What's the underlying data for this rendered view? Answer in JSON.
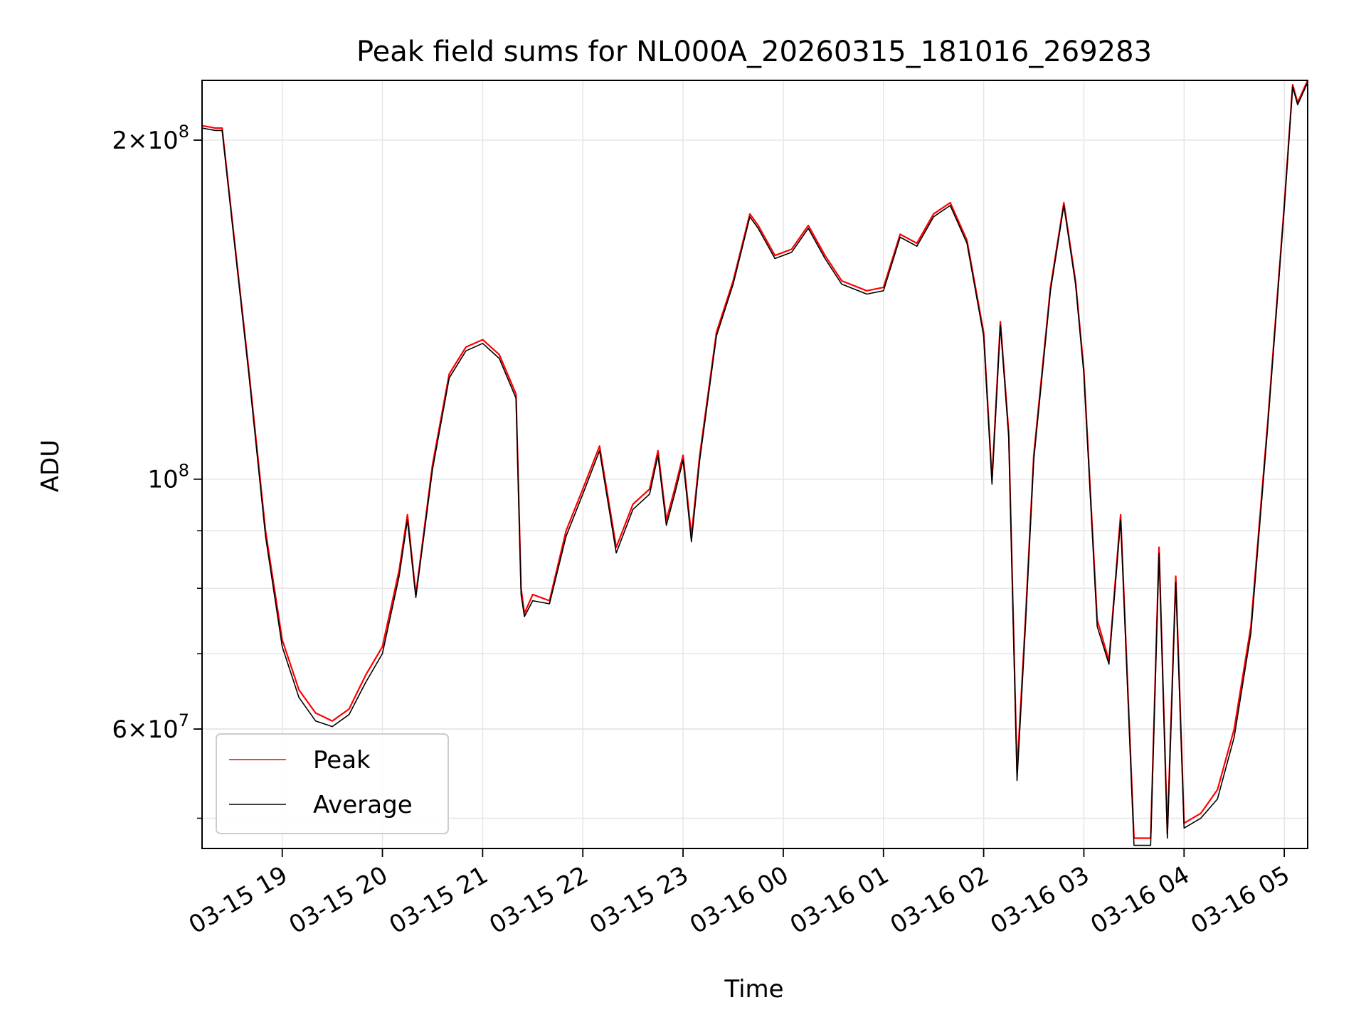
{
  "chart_data": {
    "type": "line",
    "title": "Peak field sums for NL000A_20260315_181016_269283",
    "xlabel": "Time",
    "ylabel": "ADU",
    "yscale": "log",
    "grid": true,
    "legend_position": "lower-left",
    "x_range": [
      "2026-03-15 18:12",
      "2026-03-16 05:14"
    ],
    "y_range": [
      47000000,
      226000000
    ],
    "x_ticks": [
      "03-15 19",
      "03-15 20",
      "03-15 21",
      "03-15 22",
      "03-15 23",
      "03-16 00",
      "03-16 01",
      "03-16 02",
      "03-16 03",
      "03-16 04",
      "03-16 05"
    ],
    "y_ticks": [
      {
        "value": 60000000,
        "label_mantissa": "6",
        "label_exponent": "7"
      },
      {
        "value": 100000000,
        "label_mantissa": "",
        "label_exponent": "8"
      },
      {
        "value": 200000000,
        "label_mantissa": "2",
        "label_exponent": "8"
      }
    ],
    "series": [
      {
        "name": "Peak",
        "color": "#ff0000",
        "points": [
          [
            "2026-03-15 18:12",
            206000000
          ],
          [
            "2026-03-15 18:20",
            205000000
          ],
          [
            "2026-03-15 18:24",
            205000000
          ],
          [
            "2026-03-15 18:30",
            170000000
          ],
          [
            "2026-03-15 18:40",
            125000000
          ],
          [
            "2026-03-15 18:50",
            90000000
          ],
          [
            "2026-03-15 19:00",
            72000000
          ],
          [
            "2026-03-15 19:10",
            65000000
          ],
          [
            "2026-03-15 19:20",
            62000000
          ],
          [
            "2026-03-15 19:30",
            61000000
          ],
          [
            "2026-03-15 19:40",
            62500000
          ],
          [
            "2026-03-15 19:50",
            67000000
          ],
          [
            "2026-03-15 20:00",
            71000000
          ],
          [
            "2026-03-15 20:10",
            83000000
          ],
          [
            "2026-03-15 20:15",
            93000000
          ],
          [
            "2026-03-15 20:20",
            79000000
          ],
          [
            "2026-03-15 20:30",
            103000000
          ],
          [
            "2026-03-15 20:40",
            124000000
          ],
          [
            "2026-03-15 20:50",
            131000000
          ],
          [
            "2026-03-15 21:00",
            133000000
          ],
          [
            "2026-03-15 21:10",
            129000000
          ],
          [
            "2026-03-15 21:20",
            119000000
          ],
          [
            "2026-03-15 21:23",
            80000000
          ],
          [
            "2026-03-15 21:25",
            76000000
          ],
          [
            "2026-03-15 21:30",
            79000000
          ],
          [
            "2026-03-15 21:40",
            78000000
          ],
          [
            "2026-03-15 21:50",
            90000000
          ],
          [
            "2026-03-15 22:00",
            98000000
          ],
          [
            "2026-03-15 22:10",
            107000000
          ],
          [
            "2026-03-15 22:20",
            87000000
          ],
          [
            "2026-03-15 22:30",
            95000000
          ],
          [
            "2026-03-15 22:40",
            98000000
          ],
          [
            "2026-03-15 22:45",
            106000000
          ],
          [
            "2026-03-15 22:50",
            92000000
          ],
          [
            "2026-03-15 22:55",
            98000000
          ],
          [
            "2026-03-15 23:00",
            105000000
          ],
          [
            "2026-03-15 23:05",
            89000000
          ],
          [
            "2026-03-15 23:10",
            105000000
          ],
          [
            "2026-03-15 23:20",
            135000000
          ],
          [
            "2026-03-15 23:30",
            150000000
          ],
          [
            "2026-03-15 23:40",
            172000000
          ],
          [
            "2026-03-15 23:45",
            168000000
          ],
          [
            "2026-03-15 23:55",
            158000000
          ],
          [
            "2026-03-16 00:05",
            160000000
          ],
          [
            "2026-03-16 00:15",
            168000000
          ],
          [
            "2026-03-16 00:25",
            158000000
          ],
          [
            "2026-03-16 00:35",
            150000000
          ],
          [
            "2026-03-16 00:50",
            147000000
          ],
          [
            "2026-03-16 01:00",
            148000000
          ],
          [
            "2026-03-16 01:10",
            165000000
          ],
          [
            "2026-03-16 01:20",
            162000000
          ],
          [
            "2026-03-16 01:30",
            172000000
          ],
          [
            "2026-03-16 01:40",
            176000000
          ],
          [
            "2026-03-16 01:50",
            163000000
          ],
          [
            "2026-03-16 02:00",
            135000000
          ],
          [
            "2026-03-16 02:05",
            100000000
          ],
          [
            "2026-03-16 02:10",
            138000000
          ],
          [
            "2026-03-16 02:15",
            110000000
          ],
          [
            "2026-03-16 02:20",
            55000000
          ],
          [
            "2026-03-16 02:25",
            75000000
          ],
          [
            "2026-03-16 02:30",
            105000000
          ],
          [
            "2026-03-16 02:40",
            148000000
          ],
          [
            "2026-03-16 02:48",
            176000000
          ],
          [
            "2026-03-16 02:55",
            150000000
          ],
          [
            "2026-03-16 03:00",
            125000000
          ],
          [
            "2026-03-16 03:08",
            75000000
          ],
          [
            "2026-03-16 03:15",
            69000000
          ],
          [
            "2026-03-16 03:22",
            93000000
          ],
          [
            "2026-03-16 03:30",
            48000000
          ],
          [
            "2026-03-16 03:40",
            48000000
          ],
          [
            "2026-03-16 03:45",
            87000000
          ],
          [
            "2026-03-16 03:50",
            48500000
          ],
          [
            "2026-03-16 03:55",
            82000000
          ],
          [
            "2026-03-16 04:00",
            49500000
          ],
          [
            "2026-03-16 04:10",
            50500000
          ],
          [
            "2026-03-16 04:20",
            53000000
          ],
          [
            "2026-03-16 04:30",
            60000000
          ],
          [
            "2026-03-16 04:40",
            74000000
          ],
          [
            "2026-03-16 04:50",
            112000000
          ],
          [
            "2026-03-16 05:00",
            175000000
          ],
          [
            "2026-03-16 05:05",
            224000000
          ],
          [
            "2026-03-16 05:08",
            216000000
          ],
          [
            "2026-03-16 05:14",
            226000000
          ]
        ]
      },
      {
        "name": "Average",
        "color": "#000000",
        "points": [
          [
            "2026-03-15 18:12",
            205000000
          ],
          [
            "2026-03-15 18:20",
            204000000
          ],
          [
            "2026-03-15 18:24",
            204000000
          ],
          [
            "2026-03-15 18:30",
            169000000
          ],
          [
            "2026-03-15 18:40",
            124000000
          ],
          [
            "2026-03-15 18:50",
            89000000
          ],
          [
            "2026-03-15 19:00",
            71000000
          ],
          [
            "2026-03-15 19:10",
            64000000
          ],
          [
            "2026-03-15 19:20",
            61000000
          ],
          [
            "2026-03-15 19:30",
            60300000
          ],
          [
            "2026-03-15 19:40",
            61800000
          ],
          [
            "2026-03-15 19:50",
            66000000
          ],
          [
            "2026-03-15 20:00",
            70000000
          ],
          [
            "2026-03-15 20:10",
            82000000
          ],
          [
            "2026-03-15 20:15",
            92000000
          ],
          [
            "2026-03-15 20:20",
            78500000
          ],
          [
            "2026-03-15 20:30",
            102000000
          ],
          [
            "2026-03-15 20:40",
            123000000
          ],
          [
            "2026-03-15 20:50",
            130000000
          ],
          [
            "2026-03-15 21:00",
            132000000
          ],
          [
            "2026-03-15 21:10",
            128000000
          ],
          [
            "2026-03-15 21:20",
            118000000
          ],
          [
            "2026-03-15 21:23",
            79000000
          ],
          [
            "2026-03-15 21:25",
            75500000
          ],
          [
            "2026-03-15 21:30",
            78000000
          ],
          [
            "2026-03-15 21:40",
            77500000
          ],
          [
            "2026-03-15 21:50",
            89000000
          ],
          [
            "2026-03-15 22:00",
            97000000
          ],
          [
            "2026-03-15 22:10",
            106000000
          ],
          [
            "2026-03-15 22:20",
            86000000
          ],
          [
            "2026-03-15 22:30",
            94000000
          ],
          [
            "2026-03-15 22:40",
            97000000
          ],
          [
            "2026-03-15 22:45",
            105000000
          ],
          [
            "2026-03-15 22:50",
            91000000
          ],
          [
            "2026-03-15 22:55",
            97000000
          ],
          [
            "2026-03-15 23:00",
            104000000
          ],
          [
            "2026-03-15 23:05",
            88000000
          ],
          [
            "2026-03-15 23:10",
            104000000
          ],
          [
            "2026-03-15 23:20",
            134000000
          ],
          [
            "2026-03-15 23:30",
            149000000
          ],
          [
            "2026-03-15 23:40",
            171000000
          ],
          [
            "2026-03-15 23:45",
            167000000
          ],
          [
            "2026-03-15 23:55",
            157000000
          ],
          [
            "2026-03-16 00:05",
            159000000
          ],
          [
            "2026-03-16 00:15",
            167000000
          ],
          [
            "2026-03-16 00:25",
            157000000
          ],
          [
            "2026-03-16 00:35",
            149000000
          ],
          [
            "2026-03-16 00:50",
            146000000
          ],
          [
            "2026-03-16 01:00",
            147000000
          ],
          [
            "2026-03-16 01:10",
            164000000
          ],
          [
            "2026-03-16 01:20",
            161000000
          ],
          [
            "2026-03-16 01:30",
            171000000
          ],
          [
            "2026-03-16 01:40",
            175000000
          ],
          [
            "2026-03-16 01:50",
            162000000
          ],
          [
            "2026-03-16 02:00",
            134000000
          ],
          [
            "2026-03-16 02:05",
            99000000
          ],
          [
            "2026-03-16 02:10",
            137000000
          ],
          [
            "2026-03-16 02:15",
            109000000
          ],
          [
            "2026-03-16 02:20",
            54000000
          ],
          [
            "2026-03-16 02:25",
            74000000
          ],
          [
            "2026-03-16 02:30",
            104000000
          ],
          [
            "2026-03-16 02:40",
            147000000
          ],
          [
            "2026-03-16 02:48",
            175000000
          ],
          [
            "2026-03-16 02:55",
            149000000
          ],
          [
            "2026-03-16 03:00",
            124000000
          ],
          [
            "2026-03-16 03:08",
            74000000
          ],
          [
            "2026-03-16 03:15",
            68500000
          ],
          [
            "2026-03-16 03:22",
            92000000
          ],
          [
            "2026-03-16 03:30",
            47300000
          ],
          [
            "2026-03-16 03:40",
            47300000
          ],
          [
            "2026-03-16 03:45",
            86000000
          ],
          [
            "2026-03-16 03:50",
            48000000
          ],
          [
            "2026-03-16 03:55",
            81000000
          ],
          [
            "2026-03-16 04:00",
            49000000
          ],
          [
            "2026-03-16 04:10",
            50000000
          ],
          [
            "2026-03-16 04:20",
            52000000
          ],
          [
            "2026-03-16 04:30",
            59000000
          ],
          [
            "2026-03-16 04:40",
            73000000
          ],
          [
            "2026-03-16 04:50",
            111000000
          ],
          [
            "2026-03-16 05:00",
            174000000
          ],
          [
            "2026-03-16 05:05",
            223000000
          ],
          [
            "2026-03-16 05:08",
            215000000
          ],
          [
            "2026-03-16 05:14",
            225000000
          ]
        ]
      }
    ]
  }
}
